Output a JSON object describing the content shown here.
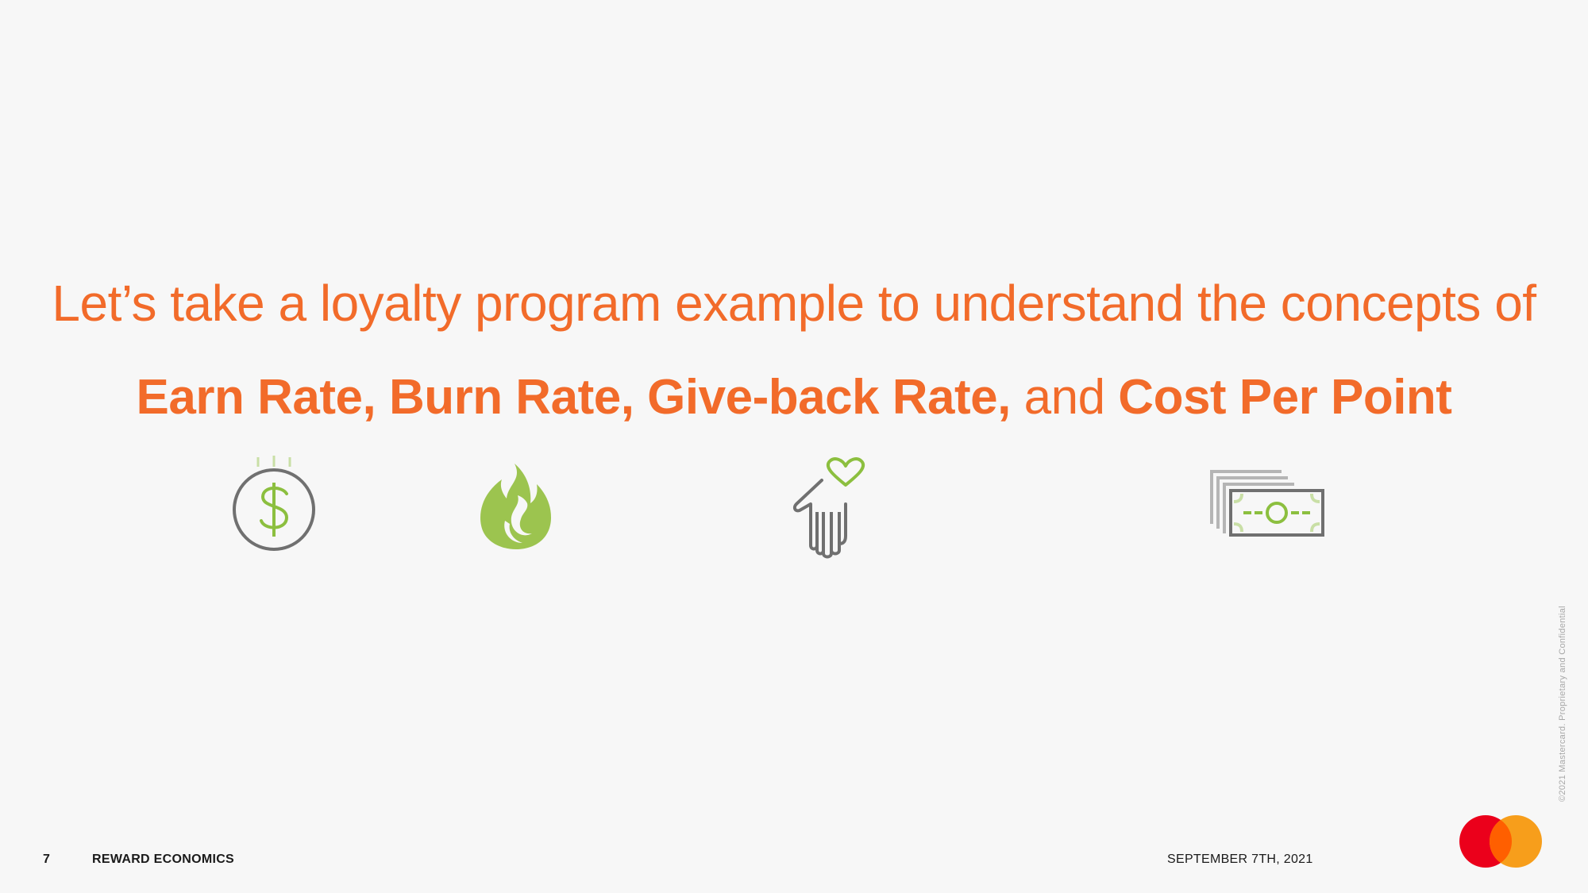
{
  "slide": {
    "headline": "Let’s take a loyalty program example to understand the concepts of",
    "terms": {
      "earn_rate": "Earn Rate,",
      "burn_rate": "Burn Rate,",
      "giveback_rate": "Give-back Rate,",
      "connector": "and",
      "cost_per_point": "Cost Per Point"
    },
    "icons": [
      "dollar-coin-icon",
      "flame-icon",
      "hand-heart-icon",
      "cash-stack-icon"
    ],
    "copyright": "©2021 Mastercard. Proprietary and Confidential"
  },
  "footer": {
    "page_number": "7",
    "section_title": "REWARD ECONOMICS",
    "date": "SEPTEMBER 7TH, 2021"
  },
  "colors": {
    "accent_orange": "#f26b2a",
    "icon_green": "#8cbf3f",
    "icon_gray": "#707070",
    "logo_red": "#eb001b",
    "logo_yellow": "#f79e1b",
    "logo_overlap": "#ff5f00"
  }
}
